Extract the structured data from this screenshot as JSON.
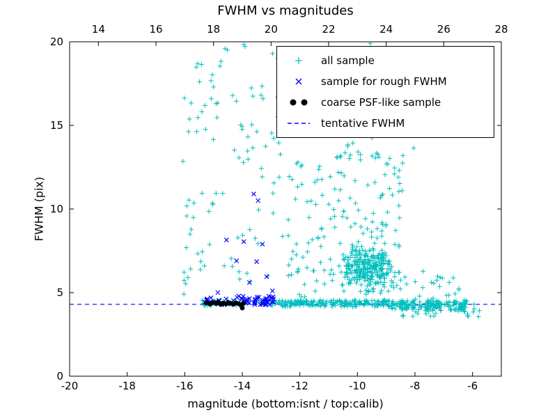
{
  "chart_data": {
    "type": "scatter",
    "title": "FWHM vs magnitudes",
    "xlabel": "magnitude (bottom:isnt / top:calib)",
    "ylabel": "FWHM (pix)",
    "xlim": [
      -20,
      -5
    ],
    "ylim": [
      0,
      20
    ],
    "x_ticks": [
      -20,
      -18,
      -16,
      -14,
      -12,
      -10,
      -8,
      -6
    ],
    "y_ticks": [
      0,
      5,
      10,
      15,
      20
    ],
    "top_axis": {
      "lim": [
        13,
        28
      ],
      "ticks": [
        14,
        16,
        18,
        20,
        22,
        24,
        26,
        28
      ]
    },
    "grid": false,
    "legend_position": "upper right",
    "colors": {
      "all_sample": "#00bfbf",
      "rough_fwhm": "#0000ff",
      "coarse_psf": "#000000",
      "tentative_line": "#0000ff"
    },
    "tentative_fwhm_value": 4.3,
    "series": [
      {
        "name": "all sample",
        "marker": "plus",
        "color": "#00bfbf",
        "clusters": [
          {
            "count": 55,
            "x": [
              -16.1,
              -14.2
            ],
            "y": [
              4.8,
              20.0
            ],
            "mode": "uniform"
          },
          {
            "count": 45,
            "x": [
              -14.2,
              -12.4
            ],
            "y": [
              5.5,
              20.0
            ],
            "mode": "uniform"
          },
          {
            "count": 60,
            "x": [
              -12.4,
              -10.8
            ],
            "y": [
              4.7,
              13.0
            ],
            "mode": "uniform"
          },
          {
            "count": 300,
            "x": [
              -11.0,
              -8.2
            ],
            "y": [
              4.5,
              8.5
            ],
            "mode": "gauss"
          },
          {
            "count": 70,
            "x": [
              -10.8,
              -8.4
            ],
            "y": [
              8.5,
              13.5
            ],
            "mode": "uniform"
          },
          {
            "count": 18,
            "x": [
              -10.5,
              -8.0
            ],
            "y": [
              13.5,
              17.5
            ],
            "mode": "uniform"
          },
          {
            "count": 60,
            "x": [
              -15.5,
              -12.8
            ],
            "y": [
              4.2,
              4.55
            ],
            "mode": "uniform"
          },
          {
            "count": 190,
            "x": [
              -12.8,
              -8.8
            ],
            "y": [
              4.15,
              4.55
            ],
            "mode": "uniform"
          },
          {
            "count": 150,
            "x": [
              -8.8,
              -6.2
            ],
            "y": [
              3.95,
              4.55
            ],
            "mode": "uniform"
          },
          {
            "count": 40,
            "x": [
              -8.6,
              -5.7
            ],
            "y": [
              3.5,
              4.35
            ],
            "mode": "uniform"
          },
          {
            "count": 25,
            "x": [
              -8.6,
              -6.4
            ],
            "y": [
              4.5,
              6.5
            ],
            "mode": "uniform"
          }
        ],
        "points": [
          [
            -5.95,
            4.3
          ],
          [
            -6.3,
            3.9
          ],
          [
            -13.95,
            19.85
          ],
          [
            -14.6,
            19.6
          ],
          [
            -12.95,
            19.3
          ],
          [
            -9.55,
            19.9
          ],
          [
            -10.3,
            16.3
          ],
          [
            -15.0,
            17.3
          ],
          [
            -13.35,
            16.8
          ],
          [
            -15.3,
            16.2
          ],
          [
            -9.0,
            18.4
          ],
          [
            -10.0,
            14.9
          ]
        ]
      },
      {
        "name": "sample for rough FWHM",
        "marker": "x",
        "color": "#0000ff",
        "clusters": [
          {
            "count": 60,
            "x": [
              -15.35,
              -12.9
            ],
            "y": [
              4.25,
              4.8
            ],
            "mode": "uniform"
          }
        ],
        "points": [
          [
            -13.6,
            10.9
          ],
          [
            -13.45,
            10.5
          ],
          [
            -14.55,
            8.15
          ],
          [
            -13.95,
            8.05
          ],
          [
            -13.3,
            7.9
          ],
          [
            -14.2,
            6.9
          ],
          [
            -13.5,
            6.85
          ],
          [
            -13.15,
            5.95
          ],
          [
            -12.95,
            5.1
          ],
          [
            -14.85,
            5.0
          ],
          [
            -13.75,
            5.6
          ]
        ]
      },
      {
        "name": "coarse PSF-like sample",
        "marker": "dot",
        "color": "#000000",
        "points": [
          [
            -15.25,
            4.38
          ],
          [
            -15.12,
            4.32
          ],
          [
            -15.02,
            4.4
          ],
          [
            -14.92,
            4.35
          ],
          [
            -14.84,
            4.42
          ],
          [
            -14.75,
            4.3
          ],
          [
            -14.66,
            4.37
          ],
          [
            -14.56,
            4.33
          ],
          [
            -14.49,
            4.41
          ],
          [
            -14.4,
            4.36
          ],
          [
            -14.31,
            4.3
          ],
          [
            -14.22,
            4.38
          ],
          [
            -14.12,
            4.33
          ],
          [
            -14.04,
            4.26
          ],
          [
            -13.96,
            4.35
          ],
          [
            -14.0,
            4.08
          ]
        ]
      },
      {
        "name": "tentative FWHM",
        "marker": "hline",
        "color": "#0000ff",
        "y": 4.3
      }
    ]
  }
}
